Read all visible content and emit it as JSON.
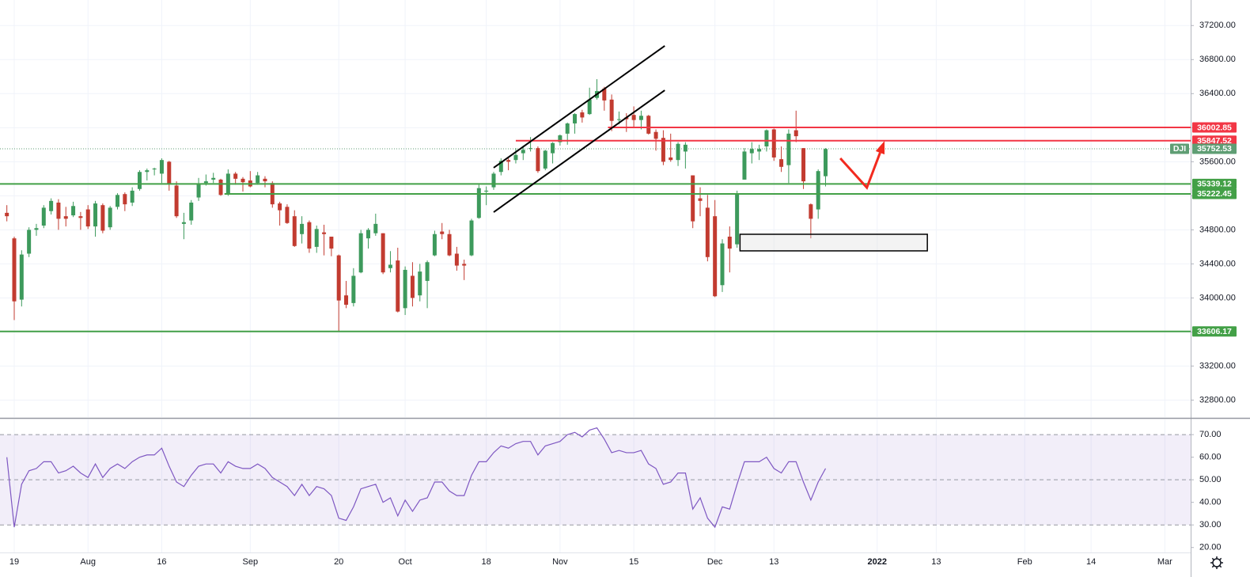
{
  "chart_data": {
    "type": "candlestick",
    "symbol": "DJI",
    "last_price": 35752.53,
    "up_color": "#3d9a5c",
    "down_color": "#c23b30",
    "xlim": [
      -0.93,
      160.5
    ],
    "ylim": [
      32600,
      37500
    ],
    "grid": true,
    "xticks": [
      {
        "value": 1,
        "label": "19"
      },
      {
        "value": 11,
        "label": "Aug"
      },
      {
        "value": 21,
        "label": "16"
      },
      {
        "value": 33,
        "label": "Sep"
      },
      {
        "value": 45,
        "label": "20"
      },
      {
        "value": 54,
        "label": "Oct"
      },
      {
        "value": 65,
        "label": "18"
      },
      {
        "value": 75,
        "label": "Nov"
      },
      {
        "value": 85,
        "label": "15"
      },
      {
        "value": 96,
        "label": "Dec"
      },
      {
        "value": 104,
        "label": "13"
      },
      {
        "value": 118,
        "label": "2022"
      },
      {
        "value": 126,
        "label": "13"
      },
      {
        "value": 138,
        "label": "Feb"
      },
      {
        "value": 147,
        "label": "14"
      },
      {
        "value": 157,
        "label": "Mar"
      }
    ],
    "yticks": [
      {
        "value": 37200,
        "label": "37200.00"
      },
      {
        "value": 36800,
        "label": "36800.00"
      },
      {
        "value": 36400,
        "label": "36400.00"
      },
      {
        "value": 36000,
        "label": "36000.00"
      },
      {
        "value": 35600,
        "label": "35600.00"
      },
      {
        "value": 35200,
        "label": "35200.00"
      },
      {
        "value": 34800,
        "label": "34800.00"
      },
      {
        "value": 34400,
        "label": "34400.00"
      },
      {
        "value": 34000,
        "label": "34000.00"
      },
      {
        "value": 33600,
        "label": "33600.00"
      },
      {
        "value": 33200,
        "label": "33200.00"
      },
      {
        "value": 32800,
        "label": "32800.00"
      }
    ],
    "candles": [
      [
        35000,
        35090,
        34900,
        34960
      ],
      [
        34700,
        34720,
        33740,
        33960
      ],
      [
        33980,
        34560,
        33900,
        34510
      ],
      [
        34520,
        34830,
        34480,
        34800
      ],
      [
        34800,
        34870,
        34730,
        34820
      ],
      [
        34850,
        35090,
        34820,
        35060
      ],
      [
        35020,
        35170,
        34980,
        35140
      ],
      [
        35120,
        35160,
        34800,
        34930
      ],
      [
        34960,
        35070,
        34840,
        34930
      ],
      [
        34970,
        35130,
        34950,
        35080
      ],
      [
        34960,
        35010,
        34800,
        34940
      ],
      [
        35040,
        35090,
        34810,
        34840
      ],
      [
        34840,
        35140,
        34720,
        35110
      ],
      [
        35090,
        35110,
        34760,
        34790
      ],
      [
        34830,
        35080,
        34800,
        35060
      ],
      [
        35070,
        35230,
        35040,
        35210
      ],
      [
        35220,
        35240,
        35020,
        35100
      ],
      [
        35120,
        35300,
        35080,
        35260
      ],
      [
        35280,
        35500,
        35260,
        35480
      ],
      [
        35480,
        35520,
        35380,
        35500
      ],
      [
        35510,
        35530,
        35440,
        35520
      ],
      [
        35460,
        35640,
        35350,
        35620
      ],
      [
        35600,
        35610,
        35260,
        35340
      ],
      [
        35320,
        35370,
        34940,
        34960
      ],
      [
        34870,
        35000,
        34690,
        34890
      ],
      [
        34910,
        35150,
        34860,
        35120
      ],
      [
        35180,
        35410,
        35140,
        35340
      ],
      [
        35350,
        35450,
        35320,
        35370
      ],
      [
        35390,
        35470,
        35350,
        35410
      ],
      [
        35390,
        35400,
        35200,
        35210
      ],
      [
        35230,
        35510,
        35200,
        35460
      ],
      [
        35460,
        35480,
        35330,
        35400
      ],
      [
        35400,
        35420,
        35250,
        35360
      ],
      [
        35380,
        35490,
        35300,
        35310
      ],
      [
        35350,
        35480,
        35330,
        35440
      ],
      [
        35400,
        35430,
        35300,
        35370
      ],
      [
        35350,
        35370,
        35060,
        35100
      ],
      [
        35110,
        35130,
        34850,
        35030
      ],
      [
        35070,
        35100,
        34870,
        34880
      ],
      [
        34960,
        35030,
        34600,
        34610
      ],
      [
        34750,
        34960,
        34640,
        34870
      ],
      [
        34890,
        34910,
        34530,
        34580
      ],
      [
        34600,
        34850,
        34530,
        34810
      ],
      [
        34770,
        34860,
        34500,
        34750
      ],
      [
        34720,
        34720,
        34490,
        34580
      ],
      [
        34500,
        34510,
        33610,
        33970
      ],
      [
        34030,
        34200,
        33880,
        33920
      ],
      [
        33940,
        34350,
        33900,
        34260
      ],
      [
        34300,
        34800,
        34290,
        34760
      ],
      [
        34700,
        34820,
        34580,
        34800
      ],
      [
        34760,
        34990,
        34730,
        34870
      ],
      [
        34760,
        34760,
        34280,
        34300
      ],
      [
        34350,
        34550,
        34300,
        34390
      ],
      [
        34440,
        34590,
        33830,
        33840
      ],
      [
        33880,
        34370,
        33800,
        34330
      ],
      [
        34260,
        34420,
        33900,
        34000
      ],
      [
        34030,
        34400,
        33960,
        34310
      ],
      [
        34200,
        34440,
        33880,
        34420
      ],
      [
        34500,
        34790,
        34490,
        34750
      ],
      [
        34780,
        34880,
        34690,
        34750
      ],
      [
        34750,
        34800,
        34490,
        34500
      ],
      [
        34520,
        34600,
        34320,
        34380
      ],
      [
        34400,
        34450,
        34210,
        34380
      ],
      [
        34500,
        34930,
        34490,
        34910
      ],
      [
        34940,
        35330,
        34930,
        35290
      ],
      [
        35250,
        35310,
        35090,
        35260
      ],
      [
        35300,
        35480,
        35270,
        35460
      ],
      [
        35480,
        35640,
        35440,
        35610
      ],
      [
        35620,
        35640,
        35500,
        35600
      ],
      [
        35620,
        35760,
        35580,
        35680
      ],
      [
        35700,
        35790,
        35620,
        35740
      ],
      [
        35760,
        35890,
        35720,
        35760
      ],
      [
        35760,
        35780,
        35470,
        35490
      ],
      [
        35520,
        35740,
        35500,
        35730
      ],
      [
        35700,
        35830,
        35580,
        35820
      ],
      [
        35830,
        35920,
        35790,
        35910
      ],
      [
        35930,
        36060,
        35800,
        36050
      ],
      [
        36050,
        36170,
        35930,
        36160
      ],
      [
        36180,
        36210,
        36060,
        36120
      ],
      [
        36160,
        36470,
        36150,
        36330
      ],
      [
        36350,
        36570,
        36330,
        36430
      ],
      [
        36460,
        36480,
        36200,
        36320
      ],
      [
        36330,
        36390,
        35960,
        36080
      ],
      [
        36100,
        36190,
        36040,
        36100
      ],
      [
        36120,
        36170,
        35950,
        36100
      ],
      [
        36150,
        36250,
        36000,
        36090
      ],
      [
        36090,
        36200,
        35980,
        36140
      ],
      [
        36140,
        36150,
        35920,
        35930
      ],
      [
        35950,
        35980,
        35730,
        35870
      ],
      [
        35880,
        35970,
        35560,
        35600
      ],
      [
        35650,
        35930,
        35600,
        35620
      ],
      [
        35620,
        35830,
        35550,
        35810
      ],
      [
        35720,
        35830,
        35520,
        35800
      ],
      [
        35440,
        35440,
        34820,
        34900
      ],
      [
        35170,
        35300,
        34960,
        35140
      ],
      [
        35060,
        35210,
        34430,
        34480
      ],
      [
        34960,
        35150,
        34010,
        34020
      ],
      [
        34150,
        34690,
        34070,
        34640
      ],
      [
        34720,
        34840,
        34300,
        34580
      ],
      [
        34630,
        35260,
        34590,
        35230
      ],
      [
        35390,
        35760,
        35390,
        35720
      ],
      [
        35700,
        35830,
        35580,
        35750
      ],
      [
        35720,
        35800,
        35620,
        35750
      ],
      [
        35780,
        35980,
        35720,
        35970
      ],
      [
        35980,
        35990,
        35610,
        35650
      ],
      [
        35630,
        35780,
        35480,
        35540
      ],
      [
        35560,
        35980,
        35350,
        35930
      ],
      [
        35970,
        36200,
        35830,
        35900
      ],
      [
        35760,
        35760,
        35280,
        35370
      ],
      [
        35100,
        35110,
        34700,
        34930
      ],
      [
        35040,
        35510,
        34930,
        35490
      ],
      [
        35430,
        35760,
        35310,
        35750
      ]
    ],
    "levels": [
      {
        "value": 36002.85,
        "color": "#f23645",
        "start": 81.5
      },
      {
        "value": 35847.52,
        "color": "#f23645",
        "start": 69
      },
      {
        "value": 35339.12,
        "color": "#43a047",
        "start": -0.93
      },
      {
        "value": 35222.45,
        "color": "#43a047",
        "start": 29.5
      },
      {
        "value": 33606.17,
        "color": "#43a047",
        "start": -0.93
      }
    ],
    "drawings": [
      {
        "kind": "trend",
        "color": "#000000",
        "points": [
          [
            66,
            35529
          ],
          [
            89.2,
            36961
          ]
        ]
      },
      {
        "kind": "trend",
        "color": "#000000",
        "points": [
          [
            66,
            35008
          ],
          [
            89.2,
            36440
          ]
        ]
      },
      {
        "kind": "box",
        "color": "#000000",
        "points": [
          [
            99.4,
            34748
          ],
          [
            124.8,
            34553
          ]
        ]
      },
      {
        "kind": "arrow",
        "color": "#f22a1f",
        "points": [
          [
            113,
            35640
          ],
          [
            116.6,
            35296
          ],
          [
            119,
            35845
          ]
        ]
      }
    ],
    "rsi": {
      "color": "#7e57c2",
      "ylim": [
        17.8,
        76.7
      ],
      "band": [
        30,
        70
      ],
      "levels": [
        70,
        50,
        30
      ],
      "yticks": [
        {
          "value": 70,
          "label": "70.00"
        },
        {
          "value": 60,
          "label": "60.00"
        },
        {
          "value": 50,
          "label": "50.00"
        },
        {
          "value": 40,
          "label": "40.00"
        },
        {
          "value": 30,
          "label": "30.00"
        },
        {
          "value": 20,
          "label": "20.00"
        }
      ],
      "values": [
        60,
        29,
        48,
        54,
        55,
        58,
        58,
        53,
        54,
        56,
        53,
        51,
        57,
        51,
        55,
        57,
        55,
        58,
        60,
        61,
        61,
        64,
        56,
        49,
        47,
        52,
        56,
        57,
        57,
        53,
        58,
        56,
        55,
        55,
        57,
        55,
        51,
        49,
        47,
        43,
        48,
        43,
        47,
        46,
        43,
        33,
        32,
        38,
        46,
        47,
        48,
        40,
        42,
        34,
        41,
        36,
        41,
        42,
        49,
        49,
        45,
        43,
        43,
        52,
        58,
        58,
        62,
        65,
        64,
        66,
        67,
        67,
        61,
        65,
        66,
        67,
        70,
        71,
        69,
        72,
        73,
        68,
        62,
        63,
        62,
        62,
        63,
        57,
        55,
        48,
        49,
        53,
        53,
        37,
        42,
        33,
        29,
        38,
        37,
        48,
        58,
        58,
        58,
        60,
        55,
        53,
        58,
        58,
        49,
        41,
        49,
        55
      ]
    }
  }
}
